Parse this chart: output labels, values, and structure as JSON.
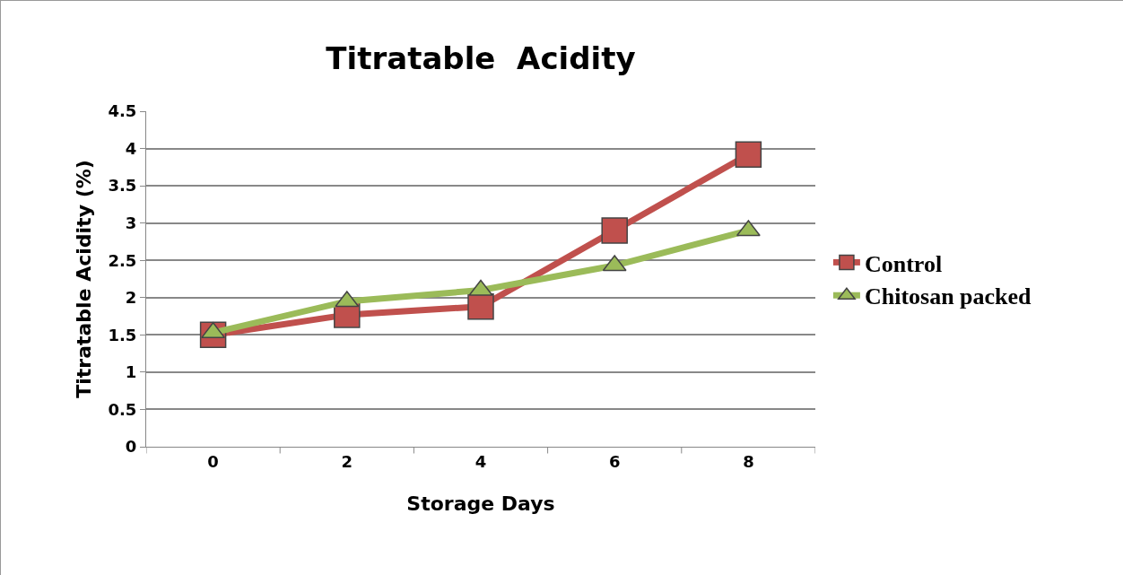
{
  "chart_data": {
    "type": "line",
    "title": "Titratable  Acidity",
    "xlabel": "Storage Days",
    "ylabel": "Titratable Acidity (%)",
    "categories": [
      "0",
      "2",
      "4",
      "6",
      "8"
    ],
    "series": [
      {
        "name": "Control",
        "color": "#c0504d",
        "marker": "square",
        "values": [
          1.5,
          1.77,
          1.88,
          2.9,
          3.92
        ]
      },
      {
        "name": "Chitosan packed",
        "color": "#9bbb59",
        "marker": "triangle",
        "values": [
          1.53,
          1.95,
          2.1,
          2.43,
          2.9
        ]
      }
    ],
    "ylim": [
      0,
      4.5
    ],
    "yticks": [
      0,
      0.5,
      1,
      1.5,
      2,
      2.5,
      3,
      3.5,
      4,
      4.5
    ],
    "grid": "y",
    "legend": "right",
    "line_style": "solid"
  }
}
